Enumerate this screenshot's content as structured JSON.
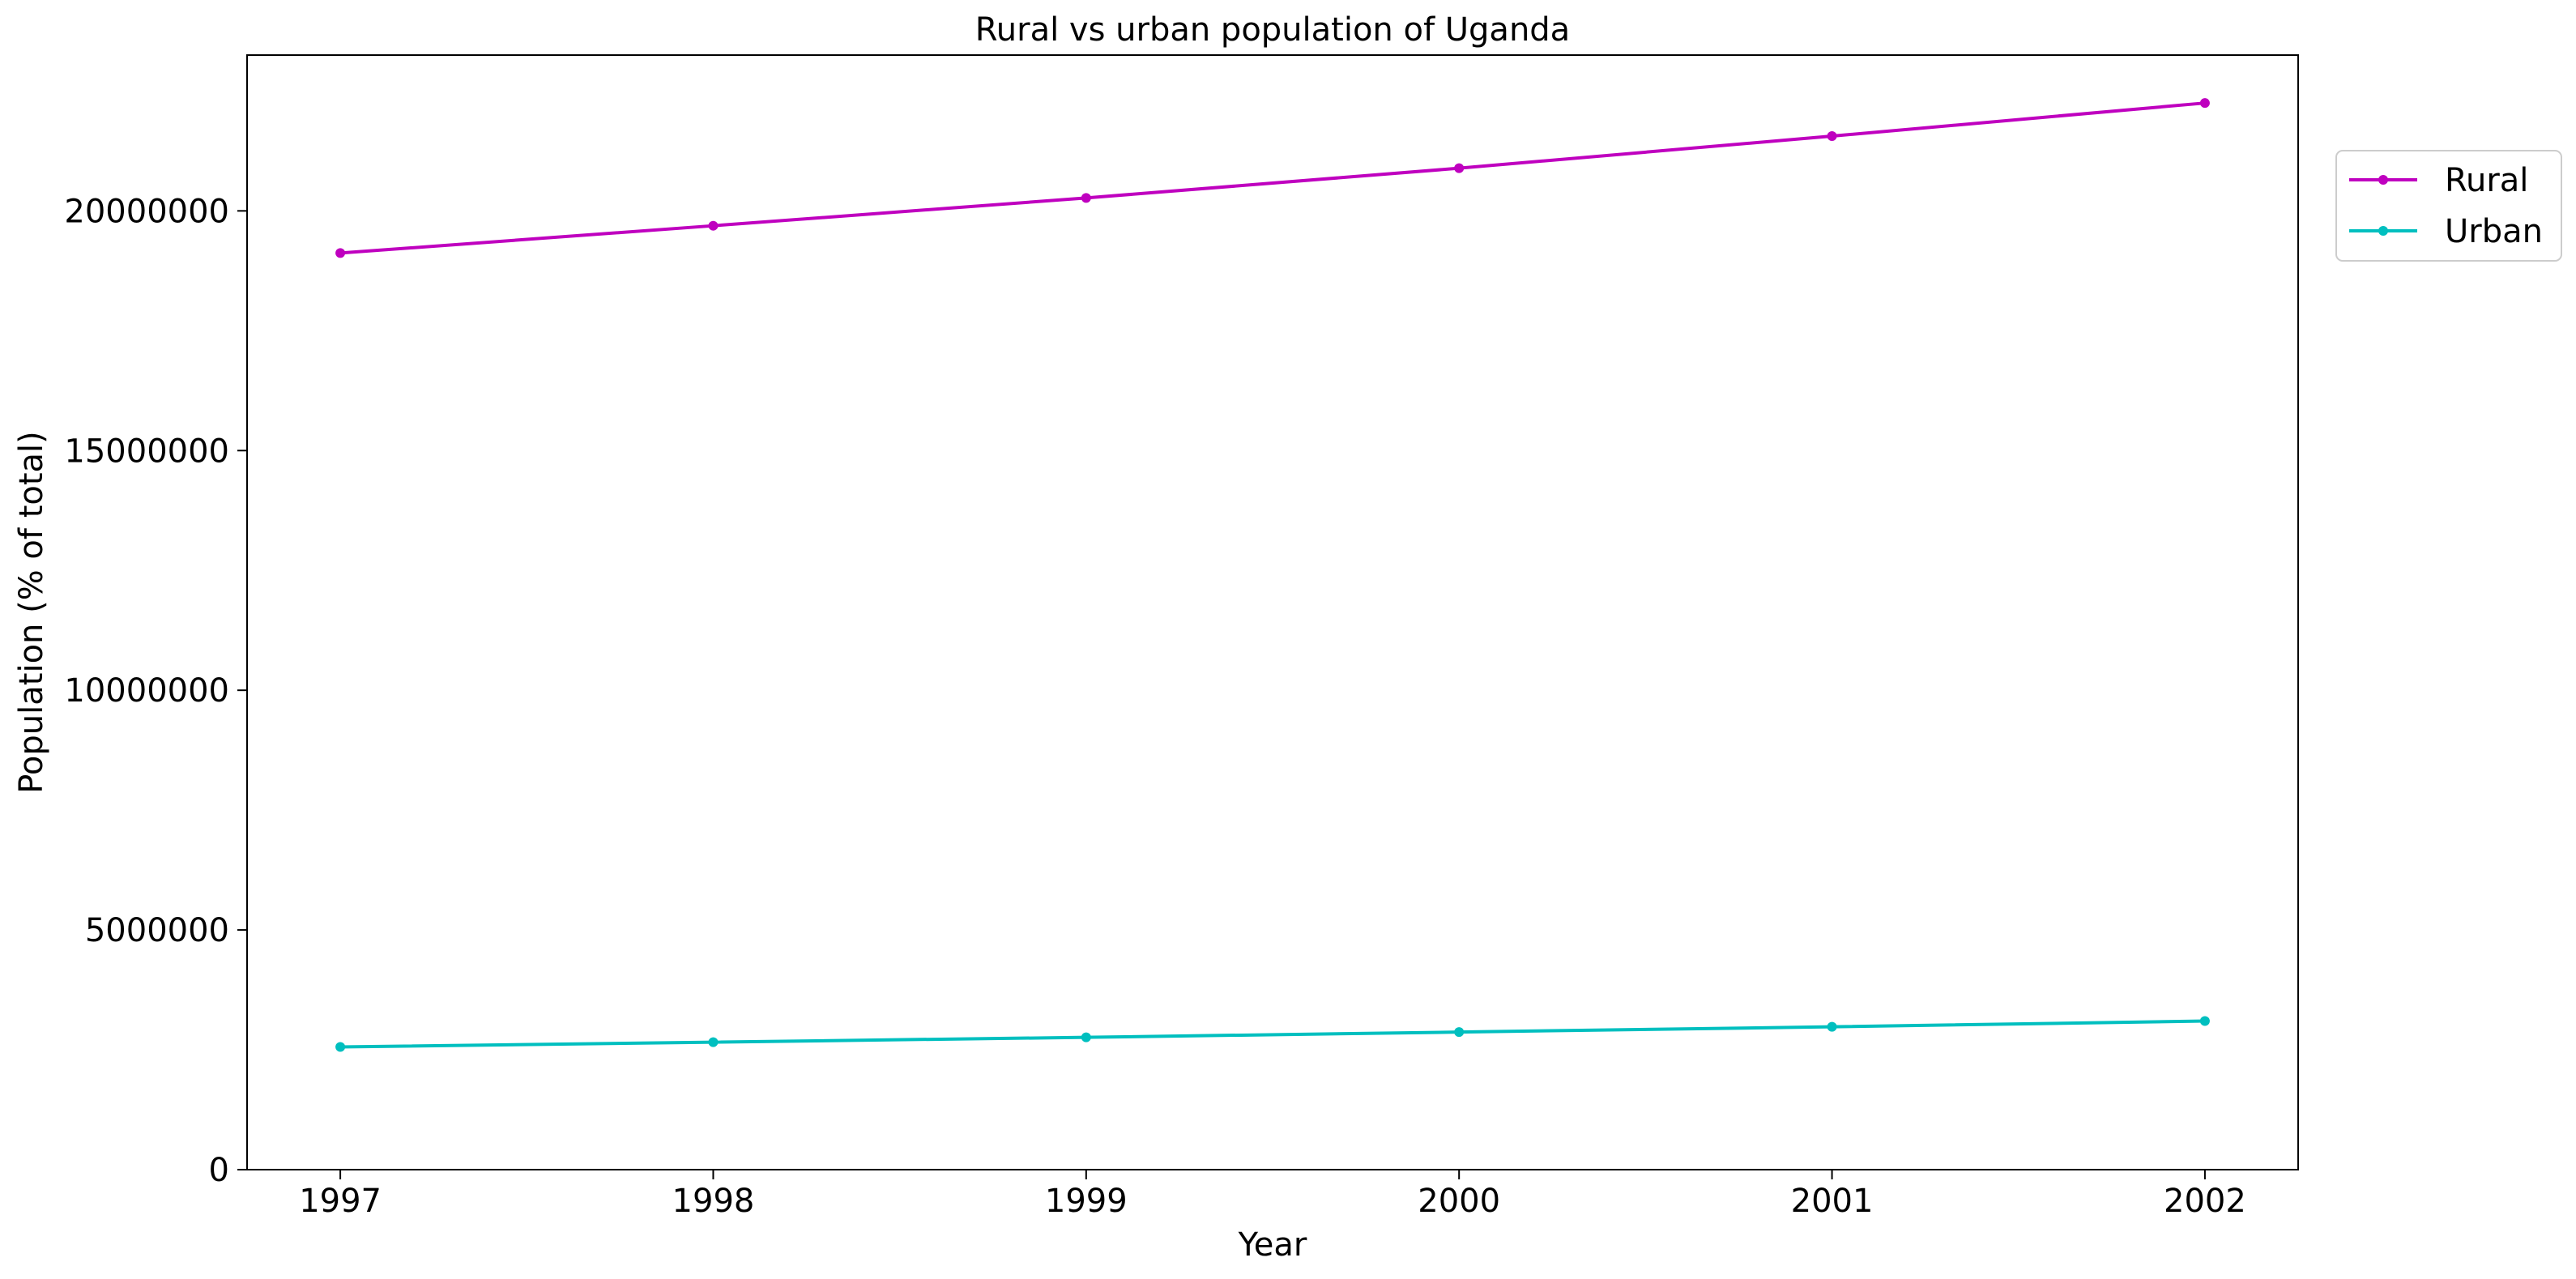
{
  "chart_data": {
    "type": "line",
    "title": "Rural vs urban population of Uganda",
    "xlabel": "Year",
    "ylabel": "Population (% of total)",
    "x": [
      1997,
      1998,
      1999,
      2000,
      2001,
      2002
    ],
    "x_tick_labels": [
      "1997",
      "1998",
      "1999",
      "2000",
      "2001",
      "2002"
    ],
    "y_ticks": [
      0,
      5000000,
      10000000,
      15000000,
      20000000
    ],
    "y_tick_labels": [
      "0",
      "5000000",
      "10000000",
      "15000000",
      "20000000"
    ],
    "xlim": [
      1996.75,
      2002.25
    ],
    "ylim": [
      0,
      23250000
    ],
    "grid": false,
    "legend_position": "upper-right-outside",
    "series": [
      {
        "name": "Rural",
        "color": "#bf00bf",
        "values": [
          19120000,
          19690000,
          20270000,
          20890000,
          21560000,
          22250000
        ]
      },
      {
        "name": "Urban",
        "color": "#00bfbf",
        "values": [
          2560000,
          2660000,
          2760000,
          2870000,
          2980000,
          3100000
        ]
      }
    ]
  }
}
